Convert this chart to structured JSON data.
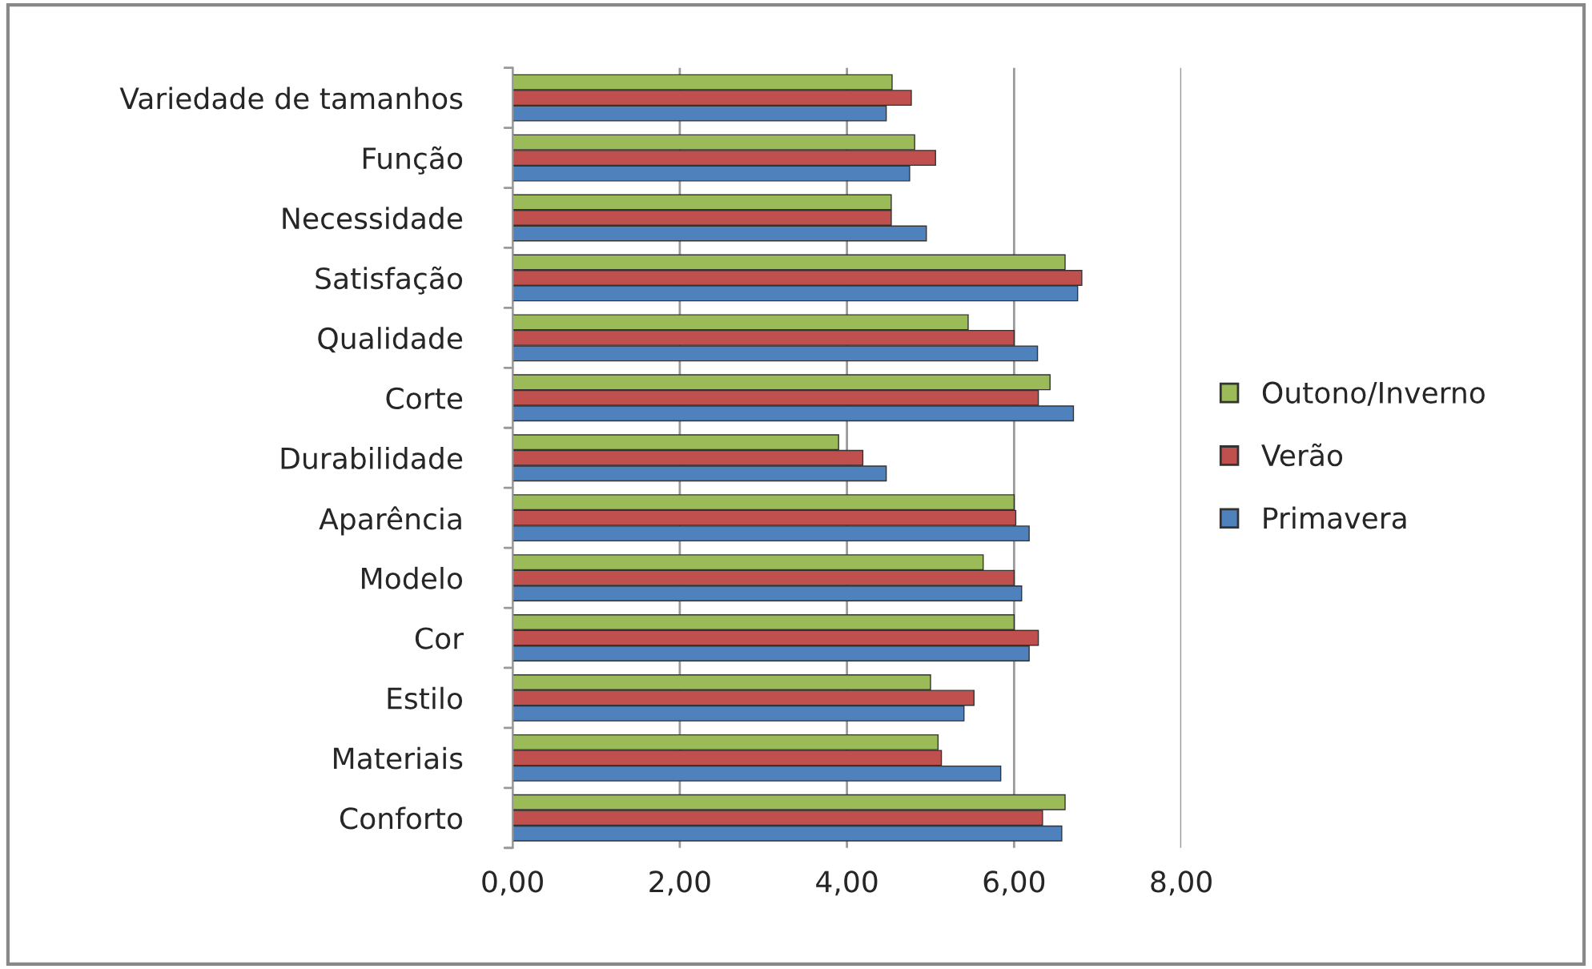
{
  "chart_data": {
    "type": "bar",
    "orientation": "horizontal",
    "categories": [
      "Variedade de tamanhos",
      "Função",
      "Necessidade",
      "Satisfação",
      "Qualidade",
      "Corte",
      "Durabilidade",
      "Aparência",
      "Modelo",
      "Cor",
      "Estilo",
      "Materiais",
      "Conforto"
    ],
    "series": [
      {
        "name": "Outono/Inverno",
        "color": "#9bbb59",
        "values": [
          4.54,
          4.81,
          4.53,
          6.61,
          5.45,
          6.43,
          3.9,
          6.0,
          5.63,
          6.0,
          5.0,
          5.09,
          6.61
        ]
      },
      {
        "name": "Verão",
        "color": "#c0504d",
        "values": [
          4.77,
          5.06,
          4.53,
          6.81,
          6.0,
          6.29,
          4.19,
          6.02,
          6.0,
          6.29,
          5.52,
          5.13,
          6.34
        ]
      },
      {
        "name": "Primavera",
        "color": "#4f81bd",
        "values": [
          4.47,
          4.75,
          4.95,
          6.76,
          6.28,
          6.71,
          4.47,
          6.18,
          6.09,
          6.18,
          5.4,
          5.84,
          6.57
        ]
      }
    ],
    "xlim": [
      0,
      8
    ],
    "xticks": [
      {
        "value": 0,
        "label": "0,00"
      },
      {
        "value": 2,
        "label": "2,00"
      },
      {
        "value": 4,
        "label": "4,00"
      },
      {
        "value": 6,
        "label": "6,00"
      },
      {
        "value": 8,
        "label": "8,00"
      }
    ],
    "grid": "x",
    "legend": "right"
  }
}
